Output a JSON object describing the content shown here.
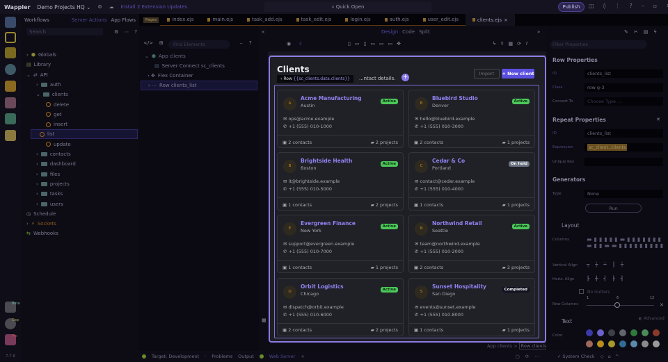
{
  "app": {
    "name": "Wappler",
    "project": "Demo Projects HQ",
    "update_notice": "Install 2 Extension Updates",
    "quick_open": "Quick Open",
    "publish": "Publish",
    "version": "7.7.6"
  },
  "workflows": {
    "title": "Workflows",
    "links": [
      "Server Actions",
      "App Flows"
    ],
    "search_placeholder": "Search",
    "tree": [
      {
        "label": "Globals",
        "depth": 0,
        "kind": "box"
      },
      {
        "label": "Library",
        "depth": 0,
        "kind": "book"
      },
      {
        "label": "API",
        "depth": 0,
        "kind": "api"
      },
      {
        "label": "auth",
        "depth": 1,
        "kind": "folder"
      },
      {
        "label": "clients",
        "depth": 1,
        "kind": "folder"
      },
      {
        "label": "delete",
        "depth": 2,
        "kind": "action"
      },
      {
        "label": "get",
        "depth": 2,
        "kind": "action"
      },
      {
        "label": "insert",
        "depth": 2,
        "kind": "action"
      },
      {
        "label": "list",
        "depth": 2,
        "kind": "action",
        "selected": true
      },
      {
        "label": "update",
        "depth": 2,
        "kind": "action"
      },
      {
        "label": "contacts",
        "depth": 1,
        "kind": "folder"
      },
      {
        "label": "dashboard",
        "depth": 1,
        "kind": "folder"
      },
      {
        "label": "files",
        "depth": 1,
        "kind": "folder"
      },
      {
        "label": "projects",
        "depth": 1,
        "kind": "folder"
      },
      {
        "label": "tasks",
        "depth": 1,
        "kind": "folder"
      },
      {
        "label": "users",
        "depth": 1,
        "kind": "folder"
      },
      {
        "label": "Schedule",
        "depth": 0,
        "kind": "clock"
      },
      {
        "label": "Sockets",
        "depth": 0,
        "kind": "plug"
      },
      {
        "label": "Webhooks",
        "depth": 0,
        "kind": "hook"
      }
    ]
  },
  "rail_badges": [
    "Beta",
    "Dep",
    "Pro"
  ],
  "pages": {
    "badge": "Pages",
    "tabs": [
      "index.ejs",
      "main.ejs",
      "task_add.ejs",
      "task_edit.ejs",
      "login.ejs",
      "auth.ejs",
      "user_edit.ejs",
      "clients.ejs"
    ],
    "active": "clients.ejs"
  },
  "structure": {
    "find_placeholder": "Find Elements",
    "tree": [
      "App clients",
      "Server Connect sc_clients",
      "Flex Container",
      "Row clients_list"
    ]
  },
  "view_modes": [
    "Design",
    "Code",
    "Split"
  ],
  "active_mode": "Design",
  "page": {
    "title": "Clients",
    "subtitle": "...ntact details.",
    "row_tip_prefix": "Row",
    "row_tip_expr": "{{sc_clients.data.clients}}",
    "import": "Import",
    "new_client": "+ New client",
    "clients": [
      {
        "initial": "A",
        "name": "Acme Manufacturing",
        "city": "Austin",
        "status": "Active",
        "email": "ops@acme.example",
        "phone": "+1 (555) 010-1000",
        "contacts": "2 contacts",
        "projects": "2 projects"
      },
      {
        "initial": "B",
        "name": "Bluebird Studio",
        "city": "Denver",
        "status": "Active",
        "email": "hello@bluebird.example",
        "phone": "+1 (555) 010-3000",
        "contacts": "2 contacts",
        "projects": "1 projects"
      },
      {
        "initial": "B",
        "name": "Brightside Health",
        "city": "Boston",
        "status": "Active",
        "email": "it@brightside.example",
        "phone": "+1 (555) 010-5000",
        "contacts": "1 contacts",
        "projects": "2 projects"
      },
      {
        "initial": "C",
        "name": "Cedar & Co",
        "city": "Portland",
        "status": "On hold",
        "email": "contact@cedar.example",
        "phone": "+1 (555) 010-4000",
        "contacts": "1 contacts",
        "projects": "1 projects"
      },
      {
        "initial": "E",
        "name": "Evergreen Finance",
        "city": "New York",
        "status": "Active",
        "email": "support@evergreen.example",
        "phone": "+1 (555) 010-7000",
        "contacts": "1 contacts",
        "projects": "1 projects"
      },
      {
        "initial": "N",
        "name": "Northwind Retail",
        "city": "Seattle",
        "status": "Active",
        "email": "team@northwind.example",
        "phone": "+1 (555) 010-2000",
        "contacts": "2 contacts",
        "projects": "2 projects"
      },
      {
        "initial": "O",
        "name": "Orbit Logistics",
        "city": "Chicago",
        "status": "Active",
        "email": "dispatch@orbit.example",
        "phone": "+1 (555) 010-6000",
        "contacts": "2 contacts",
        "projects": "2 projects"
      },
      {
        "initial": "S",
        "name": "Sunset Hospitality",
        "city": "San Diego",
        "status": "Completed",
        "email": "events@sunset.example",
        "phone": "+1 (555) 010-8000",
        "contacts": "1 contacts",
        "projects": "1 projects"
      }
    ]
  },
  "status_colors": {
    "Active": "#4cc85a",
    "On hold": "#6b7280",
    "Completed": "#0f1020"
  },
  "breadcrumb": [
    "App clients",
    ">",
    "Row clients_list"
  ],
  "props": {
    "filter_placeholder": "Filter Properties",
    "row_title": "Row Properties",
    "id_label": "ID",
    "id_value": "clients_list",
    "class_label": "Class",
    "class_value": "row g-3",
    "convert_label": "Convert To",
    "convert_placeholder": "Choose Type ...",
    "repeat_title": "Repeat Properties",
    "repeat_id_label": "ID",
    "repeat_id": "clients_list",
    "expr_label": "Expression",
    "expr_value": "sc_client..clients",
    "key_label": "Unique Key",
    "gen_title": "Generators",
    "type_label": "Type",
    "type_value": "None",
    "run": "Run",
    "layout_title": "Layout",
    "columns_label": "Columns",
    "valign_label": "Vertical Align",
    "halign_label": "Horiz. Align",
    "no_gutters": "No Gutters",
    "row_columns_label": "Row Columns",
    "slider_ticks": [
      "1",
      "6",
      "12"
    ],
    "row_columns_value": 6,
    "text_title": "Text",
    "advanced": "Advanced",
    "color_label": "Color",
    "colors": [
      "#3b3aa8",
      "#6a62c8",
      "#3d4048",
      "#63656c",
      "#2f7a3a",
      "#4d8a5a",
      "#8a3a2a",
      "#a0685a",
      "#b8901a",
      "#a89a2a",
      "#2e6e96",
      "#5a8aa8",
      "#8a8a8a",
      "#9a9a9a"
    ]
  },
  "status": {
    "target": "Target: Development",
    "problems": "Problems",
    "output": "Output",
    "web_server": "Web Server",
    "system_check": "System Check"
  }
}
